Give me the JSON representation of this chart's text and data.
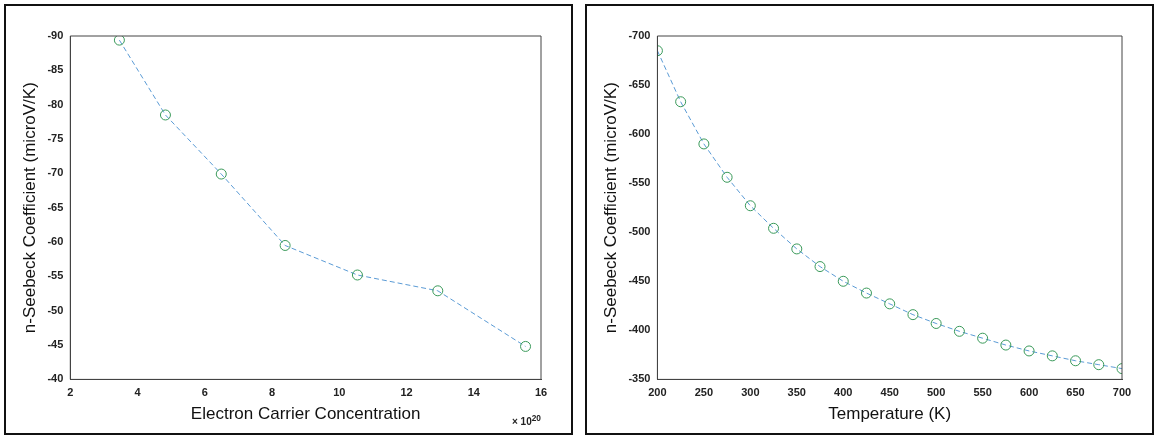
{
  "chart_data": [
    {
      "type": "line",
      "xlabel": "Electron Carrier Concentration",
      "ylabel": "n-Seebeck Coefficient (microV/K)",
      "annotations": [
        "× 10$^{20}$"
      ],
      "x": [
        3.46,
        4.83,
        6.49,
        8.39,
        10.54,
        12.93,
        15.54
      ],
      "series": [
        {
          "color": "#5b9bd5",
          "values": [
            -89.4,
            -78.5,
            -69.9,
            -59.5,
            -55.2,
            -52.9,
            -44.8
          ]
        }
      ],
      "xlim": [
        2,
        16
      ],
      "xticks": [
        2,
        4,
        6,
        8,
        10,
        12,
        14,
        16
      ],
      "ylim": [
        -40,
        -90
      ],
      "yticks": [
        -40,
        -45,
        -50,
        -55,
        -60,
        -65,
        -70,
        -75,
        -80,
        -85,
        -90
      ],
      "grid": false,
      "legend": false,
      "marker": "circle",
      "line_style": "dashed"
    },
    {
      "type": "line",
      "xlabel": "Temperature (K)",
      "ylabel": "n-Seebeck Coefficient (microV/K)",
      "x": [
        200,
        225,
        250,
        275,
        300,
        325,
        350,
        375,
        400,
        425,
        450,
        475,
        500,
        525,
        550,
        575,
        600,
        625,
        650,
        675,
        700
      ],
      "series": [
        {
          "color": "#5b9bd5",
          "values": [
            -685,
            -633,
            -590,
            -556,
            -527,
            -504,
            -483,
            -465,
            -450,
            -438,
            -427,
            -416,
            -407,
            -399,
            -392,
            -385,
            -379,
            -374,
            -369,
            -365,
            -361
          ]
        }
      ],
      "xlim": [
        200,
        700
      ],
      "xticks": [
        200,
        250,
        300,
        350,
        400,
        450,
        500,
        550,
        600,
        650,
        700
      ],
      "ylim": [
        -350,
        -700
      ],
      "yticks": [
        -350,
        -400,
        -450,
        -500,
        -550,
        -600,
        -650,
        -700
      ],
      "grid": false,
      "legend": false,
      "marker": "circle",
      "line_style": "dashed"
    }
  ]
}
